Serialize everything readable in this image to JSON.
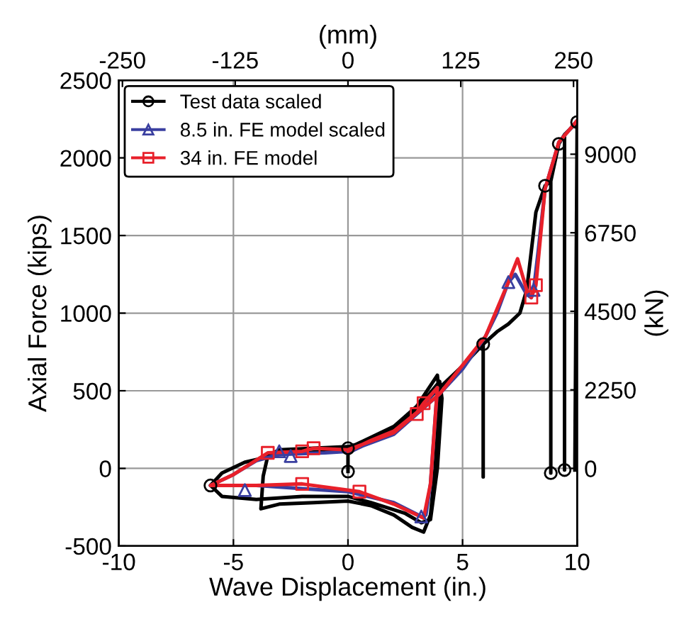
{
  "chart_data": {
    "type": "line",
    "xlabel": "Wave Displacement (in.)",
    "ylabel": "Axial Force (kips)",
    "x2label": "(mm)",
    "y2label": "(kN)",
    "xlim": [
      -10,
      10
    ],
    "xticks": [
      -10,
      -5,
      0,
      5,
      10
    ],
    "ylim": [
      -500,
      2500
    ],
    "yticks": [
      -500,
      0,
      500,
      1000,
      1500,
      2000,
      2500
    ],
    "x2lim": [
      -254,
      254
    ],
    "x2ticks": [
      -250,
      -125,
      0,
      125,
      250
    ],
    "y2lim": [
      -2224,
      11120
    ],
    "y2ticks": [
      0,
      2250,
      4500,
      6750,
      9000
    ],
    "grid": true,
    "legend": "top left",
    "line_style": "solid",
    "series": [
      {
        "name": "Test data scaled",
        "color": "#000000",
        "marker": "none",
        "x": [
          0,
          0,
          1,
          2,
          3,
          3.9,
          4,
          3.8,
          3.6,
          3.3,
          2.8,
          2,
          1,
          0,
          -1.5,
          -3,
          -3.8,
          -3.7,
          -3.5,
          -3,
          -1.5,
          0,
          1,
          2,
          3,
          4,
          4.1,
          3.9,
          3.6,
          3.2,
          2.5,
          1,
          0,
          -2,
          -4,
          -5.5,
          -6,
          -5.5,
          -4.5,
          -3,
          -1,
          0,
          2,
          4,
          5,
          5.9,
          5.9,
          5.9,
          6.5,
          7,
          7.5,
          7.8,
          8,
          8.2,
          8.6,
          8.85,
          8.85,
          8.85,
          9.2,
          9.45,
          9.45,
          9.45,
          10,
          9.9
        ],
        "values": [
          -20,
          130,
          200,
          270,
          400,
          600,
          450,
          0,
          -300,
          -410,
          -380,
          -300,
          -240,
          -210,
          -220,
          -230,
          -260,
          -50,
          80,
          120,
          130,
          140,
          180,
          250,
          380,
          560,
          450,
          0,
          -330,
          -350,
          -290,
          -220,
          -180,
          -180,
          -200,
          -180,
          -110,
          -30,
          40,
          90,
          110,
          120,
          230,
          520,
          660,
          800,
          -55,
          800,
          880,
          930,
          1000,
          1150,
          1400,
          1650,
          1820,
          1850,
          -30,
          1850,
          2090,
          2150,
          -10,
          2150,
          2230,
          -10
        ]
      },
      {
        "type": "scatter",
        "color": "#000000",
        "marker": "circle",
        "x": [
          0,
          0,
          -6,
          5.9,
          8.6,
          8.85,
          9.2,
          9.45,
          10
        ],
        "values": [
          -20,
          130,
          -110,
          800,
          1820,
          -30,
          2090,
          -10,
          2230
        ]
      },
      {
        "name": "8.5 in. FE model scaled",
        "color": "#3a3fa0",
        "marker": "none",
        "x": [
          0,
          1,
          2,
          3,
          3.9,
          3.6,
          3.4,
          3.2,
          2,
          0,
          -2,
          -4,
          -6,
          -5,
          -4,
          -3,
          -1,
          0,
          2,
          4,
          5,
          6,
          6.5,
          7,
          7.3,
          7.8,
          8,
          8.1,
          8.3,
          8.6,
          9.2,
          10
        ],
        "values": [
          100,
          170,
          230,
          350,
          520,
          -100,
          -300,
          -310,
          -220,
          -150,
          -130,
          -110,
          -110,
          -40,
          50,
          90,
          100,
          110,
          220,
          480,
          640,
          850,
          1000,
          1200,
          1250,
          1120,
          1100,
          1150,
          1400,
          1800,
          2100,
          2240
        ]
      },
      {
        "type": "scatter",
        "color": "#3a3fa0",
        "marker": "triangle",
        "x": [
          -4.5,
          -2.5,
          -3,
          3.2,
          7,
          8.1
        ],
        "values": [
          -140,
          80,
          110,
          -310,
          1200,
          1150
        ]
      },
      {
        "name": "34 in. FE model",
        "color": "#e8202a",
        "marker": "none",
        "x": [
          0,
          1,
          2,
          3,
          3.3,
          3.9,
          3.6,
          3.3,
          2,
          0.5,
          -2,
          -4,
          -6,
          -5,
          -3.5,
          -2,
          -1.5,
          0,
          2,
          4,
          6,
          7,
          7.4,
          7.8,
          8,
          8.2,
          8.6,
          9.2,
          10
        ],
        "values": [
          110,
          180,
          240,
          360,
          420,
          520,
          -100,
          -320,
          -230,
          -150,
          -100,
          -110,
          -110,
          -40,
          100,
          110,
          130,
          120,
          230,
          480,
          850,
          1200,
          1350,
          1150,
          1100,
          1180,
          1800,
          2100,
          2240
        ]
      },
      {
        "type": "scatter",
        "color": "#e8202a",
        "marker": "square",
        "x": [
          -3.5,
          -2,
          -1.5,
          -2,
          0.5,
          3,
          3.3,
          8,
          8.2
        ],
        "values": [
          100,
          110,
          130,
          -100,
          -150,
          350,
          420,
          1100,
          1180
        ]
      }
    ]
  }
}
